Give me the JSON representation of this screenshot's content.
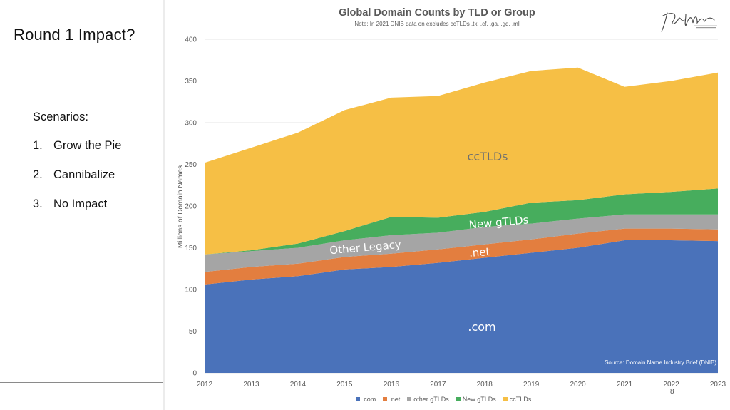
{
  "slide": {
    "title": "Round 1 Impact?",
    "scenarios_heading": "Scenarios:",
    "scenarios": [
      {
        "num": "1.",
        "label": "Grow the Pie"
      },
      {
        "num": "2.",
        "label": "Cannibalize"
      },
      {
        "num": "3.",
        "label": "No Impact"
      }
    ],
    "page_number": "8",
    "logo": "John Motion Consulting"
  },
  "chart_data": {
    "type": "area",
    "stacked": true,
    "title": "Global Domain Counts by TLD or Group",
    "subtitle": "Note: In 2021 DNIB data on excludes ccTLDs .tk, .cf, .ga, .gq, .ml",
    "xlabel": "",
    "ylabel": "Millions of Domain Names",
    "ylim": [
      0,
      400
    ],
    "yticks": [
      0,
      50,
      100,
      150,
      200,
      250,
      300,
      350,
      400
    ],
    "grid": true,
    "legend_position": "bottom",
    "source": "Source: Domain Name Industry Brief (DNIB)",
    "categories": [
      "2012",
      "2013",
      "2014",
      "2015",
      "2016",
      "2017",
      "2018",
      "2019",
      "2020",
      "2021",
      "2022",
      "2023"
    ],
    "series": [
      {
        "name": ".com",
        "color": "#4a72ba",
        "label": ".com",
        "label_color": "#ffffff",
        "values": [
          106,
          112,
          116,
          124,
          127,
          132,
          138,
          144,
          150,
          159,
          159,
          158
        ]
      },
      {
        "name": ".net",
        "color": "#e37e3f",
        "label": ".net",
        "label_color": "#ffffff",
        "values": [
          15,
          15,
          15,
          15,
          16,
          16,
          16,
          16,
          17,
          14,
          14,
          14
        ]
      },
      {
        "name": "other gTLDs",
        "color": "#a5a5a5",
        "label": "Other Legacy",
        "label_color": "#ffffff",
        "values": [
          21,
          19,
          19,
          20,
          22,
          20,
          21,
          19,
          18,
          17,
          17,
          18
        ]
      },
      {
        "name": "New gTLDs",
        "color": "#47ad5d",
        "label": "New gTLDs",
        "label_color": "#ffffff",
        "values": [
          0,
          1,
          5,
          11,
          22,
          18,
          18,
          25,
          22,
          24,
          27,
          31
        ]
      },
      {
        "name": "ccTLDs",
        "color": "#f6bf45",
        "label": "ccTLDs",
        "label_color": "#6f6f6f",
        "values": [
          110,
          123,
          133,
          145,
          143,
          146,
          155,
          158,
          159,
          129,
          133,
          139
        ]
      }
    ]
  }
}
